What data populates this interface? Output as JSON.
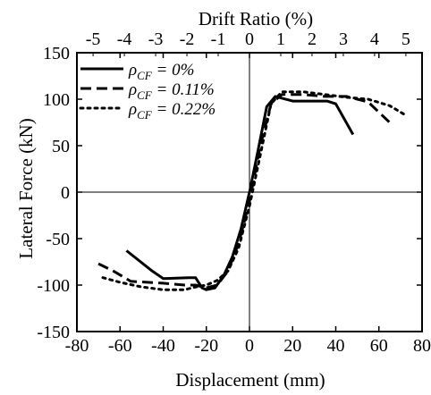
{
  "chart_data": {
    "type": "line",
    "xlabel": "Displacement (mm)",
    "ylabel": "Lateral Force (kN)",
    "top_xlabel": "Drift Ratio (%)",
    "xlim": [
      -80,
      80
    ],
    "ylim": [
      -150,
      150
    ],
    "x_ticks": [
      "-80",
      "-60",
      "-40",
      "-20",
      "0",
      "20",
      "40",
      "60",
      "80"
    ],
    "y_ticks": [
      "150",
      "100",
      "50",
      "0",
      "-50",
      "-100",
      "-150"
    ],
    "top_ticks": [
      "-5",
      "-4",
      "-3",
      "-2",
      "-1",
      "0",
      "1",
      "2",
      "3",
      "4",
      "5"
    ],
    "top_tick_mm_per_percent": 14.5,
    "legend_position": "top-left",
    "series": [
      {
        "name": "ρ_CF = 0%",
        "legend_symbol": "ρ",
        "legend_sub": "CF",
        "legend_value": " = 0%",
        "style": "solid",
        "x": [
          -57,
          -45,
          -40,
          -28,
          -25,
          -22,
          -20,
          -16,
          -12,
          -8,
          -4,
          0,
          4,
          8,
          12,
          20,
          28,
          36,
          40,
          48
        ],
        "y": [
          -63,
          -85,
          -93,
          -92,
          -92,
          -103,
          -105,
          -103,
          -90,
          -70,
          -40,
          0,
          45,
          92,
          103,
          98,
          98,
          98,
          95,
          62
        ]
      },
      {
        "name": "ρ_CF = 0.11%",
        "legend_symbol": "ρ",
        "legend_sub": "CF",
        "legend_value": " = 0.11%",
        "style": "dashed",
        "x": [
          -70,
          -63,
          -55,
          -40,
          -30,
          -25,
          -20,
          -15,
          -10,
          -5,
          0,
          5,
          10,
          15,
          25,
          35,
          45,
          55,
          65
        ],
        "y": [
          -77,
          -85,
          -96,
          -98,
          -100,
          -100,
          -103,
          -100,
          -85,
          -55,
          -10,
          50,
          95,
          105,
          105,
          103,
          103,
          97,
          75
        ]
      },
      {
        "name": "ρ_CF = 0.22%",
        "legend_symbol": "ρ",
        "legend_sub": "CF",
        "legend_value": " = 0.22%",
        "style": "dotted",
        "x": [
          -68,
          -60,
          -50,
          -40,
          -30,
          -25,
          -20,
          -15,
          -10,
          -5,
          0,
          5,
          10,
          15,
          25,
          35,
          45,
          55,
          65,
          73
        ],
        "y": [
          -92,
          -97,
          -102,
          -105,
          -105,
          -102,
          -100,
          -95,
          -85,
          -60,
          -15,
          40,
          95,
          108,
          108,
          105,
          102,
          100,
          93,
          82
        ]
      }
    ]
  }
}
